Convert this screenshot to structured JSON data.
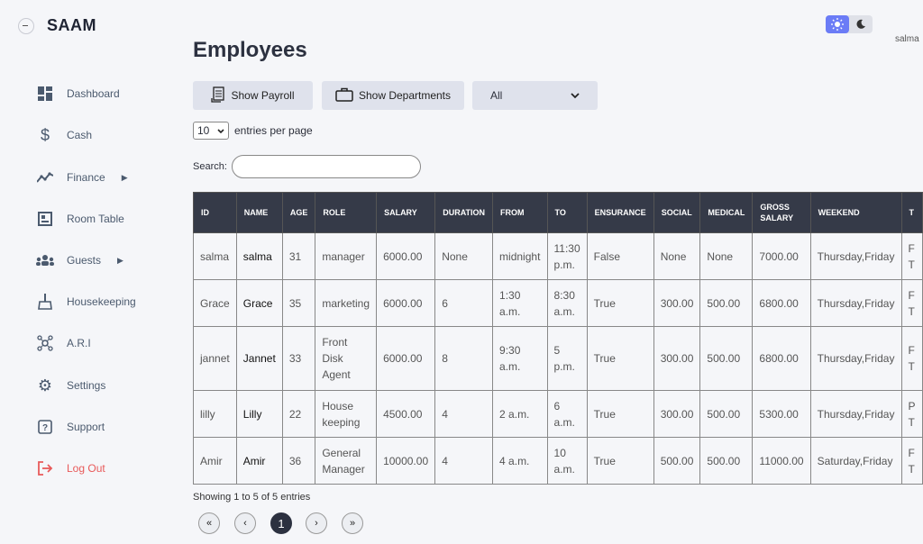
{
  "app": {
    "name": "SAAM",
    "user": "salma"
  },
  "sidebar": {
    "items": [
      {
        "label": "Dashboard",
        "icon": "dashboard-icon"
      },
      {
        "label": "Cash",
        "icon": "dollar-icon"
      },
      {
        "label": "Finance",
        "icon": "chart-icon"
      },
      {
        "label": "Room Table",
        "icon": "room-table-icon"
      },
      {
        "label": "Guests",
        "icon": "guests-icon"
      },
      {
        "label": "Housekeeping",
        "icon": "broom-icon"
      },
      {
        "label": "A.R.I",
        "icon": "network-icon"
      },
      {
        "label": "Settings",
        "icon": "gear-icon"
      },
      {
        "label": "Support",
        "icon": "help-icon"
      },
      {
        "label": "Log Out",
        "icon": "logout-icon"
      }
    ]
  },
  "page": {
    "title": "Employees"
  },
  "toolbar": {
    "payroll_label": "Show Payroll",
    "departments_label": "Show Departments",
    "filter_value": "All"
  },
  "entries": {
    "value": "10",
    "label": "entries per page"
  },
  "search": {
    "label": "Search:",
    "value": ""
  },
  "table": {
    "headers": [
      "ID",
      "NAME",
      "AGE",
      "ROLE",
      "SALARY",
      "DURATION",
      "FROM",
      "TO",
      "ENSURANCE",
      "SOCIAL",
      "MEDICAL",
      "GROSS SALARY",
      "WEEKEND",
      "T"
    ],
    "rows": [
      [
        "salma",
        "salma",
        "31",
        "manager",
        "6000.00",
        "None",
        "midnight",
        "11:30 p.m.",
        "False",
        "None",
        "None",
        "7000.00",
        "Thursday,Friday",
        "F T"
      ],
      [
        "Grace",
        "Grace",
        "35",
        "marketing",
        "6000.00",
        "6",
        "1:30 a.m.",
        "8:30 a.m.",
        "True",
        "300.00",
        "500.00",
        "6800.00",
        "Thursday,Friday",
        "F T"
      ],
      [
        "jannet",
        "Jannet",
        "33",
        "Front Disk Agent",
        "6000.00",
        "8",
        "9:30 a.m.",
        "5 p.m.",
        "True",
        "300.00",
        "500.00",
        "6800.00",
        "Thursday,Friday",
        "F T"
      ],
      [
        "lilly",
        "Lilly",
        "22",
        "House keeping",
        "4500.00",
        "4",
        "2 a.m.",
        "6 a.m.",
        "True",
        "300.00",
        "500.00",
        "5300.00",
        "Thursday,Friday",
        "P T"
      ],
      [
        "Amir",
        "Amir",
        "36",
        "General Manager",
        "10000.00",
        "4",
        "4 a.m.",
        "10 a.m.",
        "True",
        "500.00",
        "500.00",
        "11000.00",
        "Saturday,Friday",
        "F T"
      ]
    ]
  },
  "footer": {
    "showing": "Showing 1 to 5 of 5 entries"
  },
  "pagination": {
    "first": "«",
    "prev": "‹",
    "current": "1",
    "next": "›",
    "last": "»"
  },
  "colors": {
    "accent": "#6b7cf6",
    "header_bg": "#353a48",
    "logout": "#e85a5a"
  }
}
